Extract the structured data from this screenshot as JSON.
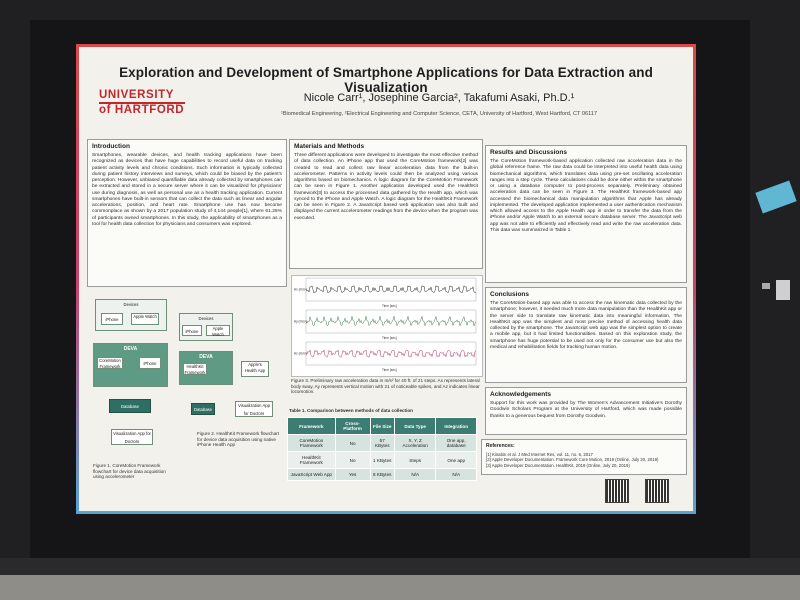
{
  "poster": {
    "title": "Exploration and Development of Smartphone Applications for Data Extraction and Visualization",
    "logo_line1": "UNIVERSITY",
    "logo_line2": "of HARTFORD",
    "authors": "Nicole Carr¹, Josephine Garcia², Takafumi Asaki, Ph.D.¹",
    "affiliation": "¹Biomedical Engineering, ²Electrical Engineering and Computer Science, CETA, University of Hartford, West Hartford, CT 06117"
  },
  "intro": {
    "heading": "Introduction",
    "text": "Smartphones, wearable devices, and health tracking applications have been recognized as devices that have huge capabilities to record useful data on tracking patient activity levels and chronic conditions. Such information is typically collected during patient history interviews and surveys, which could be biased by the patient's perception. However, unbiased quantifiable data already collected by smartphones can be extracted and stored in a secure server where it can be visualized for physicians' use during diagnosis, as well as personal use as a health tracking application. Current smartphones have built-in sensors that can collect the data such as linear and angular accelerations, position, and heart rate. Smartphone use has now become commonplace as shown by a 2017 population study of 4,144 people[1], where 61.25% of participants owned smartphones. In this study, the applicability of smartphones as a tool for health data collection for physicians and consumers was explored."
  },
  "methods": {
    "heading": "Materials and Methods",
    "text": "Three different applications were developed to investigate the most effective method of data collection. An iPhone app that used the CoreMotion framework[2] was created to read and collect raw linear acceleration data from the built-in accelerometer. Patterns in activity levels could then be analyzed using various algorithms based on biomechanics. A logic diagram for the CoreMotion Framework can be seen in Figure 1. Another application developed used the HealthKit framework[3] to access the processed data gathered by the Health app, which was synced to the iPhone and Apple Watch. A logic diagram for the HealthKit Framework can be seen in Figure 2. A JavaScript based web application was also built and displayed the current accelerometer readings from the device when the program was executed."
  },
  "fig3_caption": "Figure 3. Preliminary raw acceleration data in m/s² for 40 ft. of 21 steps. Ax represents lateral body sway, Ay represents vertical motion with 21 of noticeable spikes, and Az indicates linear locomotion.",
  "fig1_caption": "Figure 1. CoreMotion Framework flowchart for device data acquisition using accelerometer",
  "fig2_caption": "Figure 2. HealthKit Framework flowchart for device data acquisition using native iPhone Health App",
  "table": {
    "caption": "Table 1. Comparison between methods of data collection",
    "headers": [
      "Framework",
      "Cross-Platform",
      "File Size",
      "Data Type",
      "Integration"
    ],
    "rows": [
      [
        "CoreMotion Framework",
        "No",
        "57 KBytes",
        "X, Y, Z Acceleration",
        "One app, database"
      ],
      [
        "HealthKit Framework",
        "No",
        "1 KBytes",
        "Steps",
        "One app"
      ],
      [
        "JavaScript Web App",
        "Yes",
        "8 KBytes",
        "N/A",
        "N/A"
      ]
    ]
  },
  "results": {
    "heading": "Results and Discussions",
    "text": "The CoreMotion framework-based application collected raw acceleration data in the global reference frame. The raw data could be interpreted into useful health data using biomechanical algorithms, which translates data using pre-set oscillating acceleration ranges into a step cycle. These calculations could be done either within the smartphone or using a database computer to post-process separately. Preliminary obtained acceleration data can be seen in Figure 3. The HealthKit framework-based app accessed the biomechanical data manipulation algorithms that Apple has already implemented. The developed application implemented a user authentication mechanism which allowed access to the Apple Health app in order to transfer the data from the iPhone and/or Apple Watch to an external secure database server. The JavaScript web app was not able to efficiently and effectively read and write the raw acceleration data. This data was summarized in Table 1."
  },
  "conclusions": {
    "heading": "Conclusions",
    "text": "The CoreMotion-based app was able to access the raw kinematic data collected by the smartphone; however, it needed much more data manipulation than the HealthKit app or the server side to translate raw kinematic data into meaningful information. The HealthKit app was the simplest and most precise method of accessing health data collected by the smartphone. The JavaScript web app was the simplest option to create a mobile app, but it had limited functionalities. Based on this exploration study, the smartphone has huge potential to be used not only for the consumer use but also the medical and rehabilitation fields for tracking human motion."
  },
  "ack": {
    "heading": "Acknowledgements",
    "text": "Support for this work was provided by The Women's Advancement Initiative's Dorothy Goodwin Scholars Program at the University of Hartford, which was made possible thanks to a generous bequest from Dorothy Goodwin."
  },
  "refs": {
    "heading": "References:",
    "items": [
      "[1] Kinabin et al. J Med Internet Res, vol. 11, no. 6, 2017",
      "[2] Apple Developer Documentation. Framework Core Motion, 2019 (Online, July 20, 2019)",
      "[3] Apple Developer Documentation. HealthKit, 2019 (Online, July 20, 2019)"
    ]
  },
  "flow1": {
    "devices": "Devices",
    "iphone": "iPhone",
    "apple_watch": "Apple Watch",
    "deva": "DEVA",
    "coremotion": "CoreMotion Framework",
    "database": "Database",
    "viz": "Visualization App for Doctors"
  },
  "flow2": {
    "devices": "Devices",
    "iphone": "iPhone",
    "apple_watch": "Apple Watch",
    "deva": "DEVA",
    "healthkit": "HealthKit Framework",
    "apple_health": "Apple's Health App",
    "database": "Database",
    "viz": "Visualization App for Doctors"
  },
  "plots": [
    {
      "axis": "Ax (m/s²)",
      "xlabel": "Time [sec]",
      "color": "#2a2a2a"
    },
    {
      "axis": "Ay (m/s²)",
      "xlabel": "Time [sec]",
      "color": "#3c7a45"
    },
    {
      "axis": "Az (m/s²)",
      "xlabel": "Time [sec]",
      "color": "#b03a5a"
    }
  ]
}
